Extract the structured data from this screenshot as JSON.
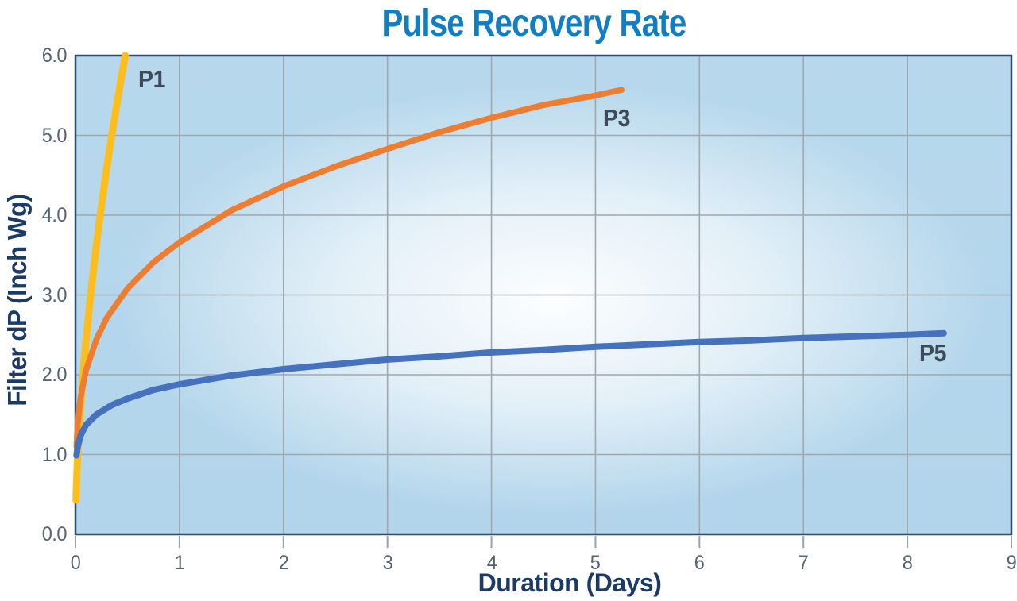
{
  "chart_data": {
    "type": "line",
    "title": "Pulse Recovery Rate",
    "xlabel": "Duration (Days)",
    "ylabel": "Filter dP (Inch Wg)",
    "xlim": [
      0,
      9
    ],
    "ylim": [
      0,
      6
    ],
    "grid": true,
    "legend_position": "inline-labels",
    "xtick_values": [
      0,
      1,
      2,
      3,
      4,
      5,
      6,
      7,
      8,
      9
    ],
    "xtick_labels": [
      "0",
      "1",
      "2",
      "3",
      "4",
      "5",
      "6",
      "7",
      "8",
      "9"
    ],
    "ytick_values": [
      0,
      1,
      2,
      3,
      4,
      5,
      6
    ],
    "ytick_labels": [
      "0.0",
      "1.0",
      "2.0",
      "3.0",
      "4.0",
      "5.0",
      "6.0"
    ],
    "series": [
      {
        "name": "P1",
        "color": "#FCBE1C",
        "stroke_width": 9,
        "points": [
          [
            0.005,
            0.43
          ],
          [
            0.01,
            0.64
          ],
          [
            0.02,
            0.96
          ],
          [
            0.04,
            1.43
          ],
          [
            0.07,
            1.97
          ],
          [
            0.1,
            2.42
          ],
          [
            0.15,
            3.06
          ],
          [
            0.2,
            3.62
          ],
          [
            0.25,
            4.12
          ],
          [
            0.3,
            4.58
          ],
          [
            0.35,
            5.01
          ],
          [
            0.4,
            5.41
          ],
          [
            0.44,
            5.72
          ],
          [
            0.48,
            6.0
          ]
        ]
      },
      {
        "name": "P3",
        "color": "#ED7D31",
        "stroke_width": 7.5,
        "points": [
          [
            0.01,
            1.1
          ],
          [
            0.02,
            1.36
          ],
          [
            0.05,
            1.72
          ],
          [
            0.1,
            2.05
          ],
          [
            0.2,
            2.44
          ],
          [
            0.3,
            2.71
          ],
          [
            0.5,
            3.08
          ],
          [
            0.75,
            3.41
          ],
          [
            1.0,
            3.66
          ],
          [
            1.5,
            4.06
          ],
          [
            2.0,
            4.36
          ],
          [
            2.5,
            4.61
          ],
          [
            3.0,
            4.83
          ],
          [
            3.5,
            5.04
          ],
          [
            4.0,
            5.22
          ],
          [
            4.5,
            5.38
          ],
          [
            5.0,
            5.5
          ],
          [
            5.25,
            5.57
          ]
        ]
      },
      {
        "name": "P5",
        "color": "#4671BC",
        "stroke_width": 8,
        "points": [
          [
            0.01,
            0.99
          ],
          [
            0.02,
            1.09
          ],
          [
            0.05,
            1.24
          ],
          [
            0.1,
            1.37
          ],
          [
            0.2,
            1.5
          ],
          [
            0.35,
            1.62
          ],
          [
            0.5,
            1.7
          ],
          [
            0.75,
            1.81
          ],
          [
            1.0,
            1.88
          ],
          [
            1.5,
            1.99
          ],
          [
            2.0,
            2.07
          ],
          [
            2.5,
            2.13
          ],
          [
            3.0,
            2.19
          ],
          [
            3.5,
            2.23
          ],
          [
            4.0,
            2.28
          ],
          [
            4.5,
            2.31
          ],
          [
            5.0,
            2.35
          ],
          [
            5.5,
            2.38
          ],
          [
            6.0,
            2.41
          ],
          [
            6.5,
            2.43
          ],
          [
            7.0,
            2.46
          ],
          [
            7.5,
            2.48
          ],
          [
            8.0,
            2.5
          ],
          [
            8.35,
            2.52
          ]
        ]
      }
    ],
    "colors": {
      "title": "#117EC2",
      "axis_titles": "#1B3A66",
      "tick_labels": "#566370",
      "series_labels": "#3E4A59",
      "grid": "#A0A7AD",
      "plot_border": "#2F4A6B",
      "tick_marks": "#9AA2AA",
      "plot_bg_edge": "#B3D5EC",
      "plot_bg_center": "#F6FAFD",
      "page_bg": "#FFFFFF"
    }
  }
}
